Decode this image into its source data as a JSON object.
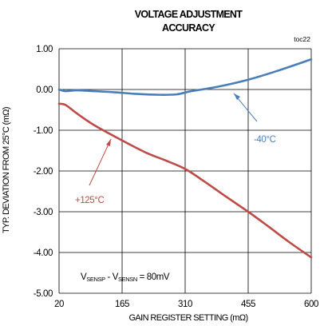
{
  "chart_data": {
    "type": "line",
    "title_line1": "VOLTAGE ADJUSTMENT",
    "title_line2": "ACCURACY",
    "figure_id": "toc22",
    "xlabel": "GAIN REGISTER SETTING (mΩ)",
    "ylabel": "TYP. DEVIATION FROM 25°C (mΩ)",
    "xlim": [
      20,
      600
    ],
    "ylim": [
      -5,
      1
    ],
    "x_ticks": [
      20,
      165,
      310,
      455,
      600
    ],
    "x_tick_labels": [
      "20",
      "165",
      "310",
      "455",
      "600"
    ],
    "y_ticks": [
      1,
      0,
      -1,
      -2,
      -3,
      -4,
      -5
    ],
    "y_tick_labels": [
      "1.00",
      "0.00",
      "-1.00",
      "-2.00",
      "-3.00",
      "-4.00",
      "-5.00"
    ],
    "grid": true,
    "series": [
      {
        "name": "-40°C",
        "color": "#4a7ebb",
        "x": [
          20,
          35,
          60,
          100,
          150,
          200,
          250,
          290,
          320,
          360,
          400,
          455,
          520,
          600
        ],
        "y": [
          0.0,
          -0.04,
          -0.02,
          -0.04,
          -0.07,
          -0.11,
          -0.13,
          -0.12,
          -0.05,
          0.02,
          0.1,
          0.24,
          0.45,
          0.74
        ]
      },
      {
        "name": "+125°C",
        "color": "#be4b48",
        "x": [
          20,
          35,
          60,
          100,
          165,
          220,
          260,
          310,
          360,
          400,
          455,
          500,
          550,
          600
        ],
        "y": [
          -0.35,
          -0.38,
          -0.58,
          -0.87,
          -1.25,
          -1.55,
          -1.72,
          -1.95,
          -2.3,
          -2.6,
          -3.0,
          -3.35,
          -3.75,
          -4.12
        ]
      }
    ],
    "annotation": {
      "vsensp": "V",
      "sensp_sub": "SENSP",
      "dash": " - V",
      "sensn_sub": "SENSN",
      "value": " = 80mV"
    }
  }
}
